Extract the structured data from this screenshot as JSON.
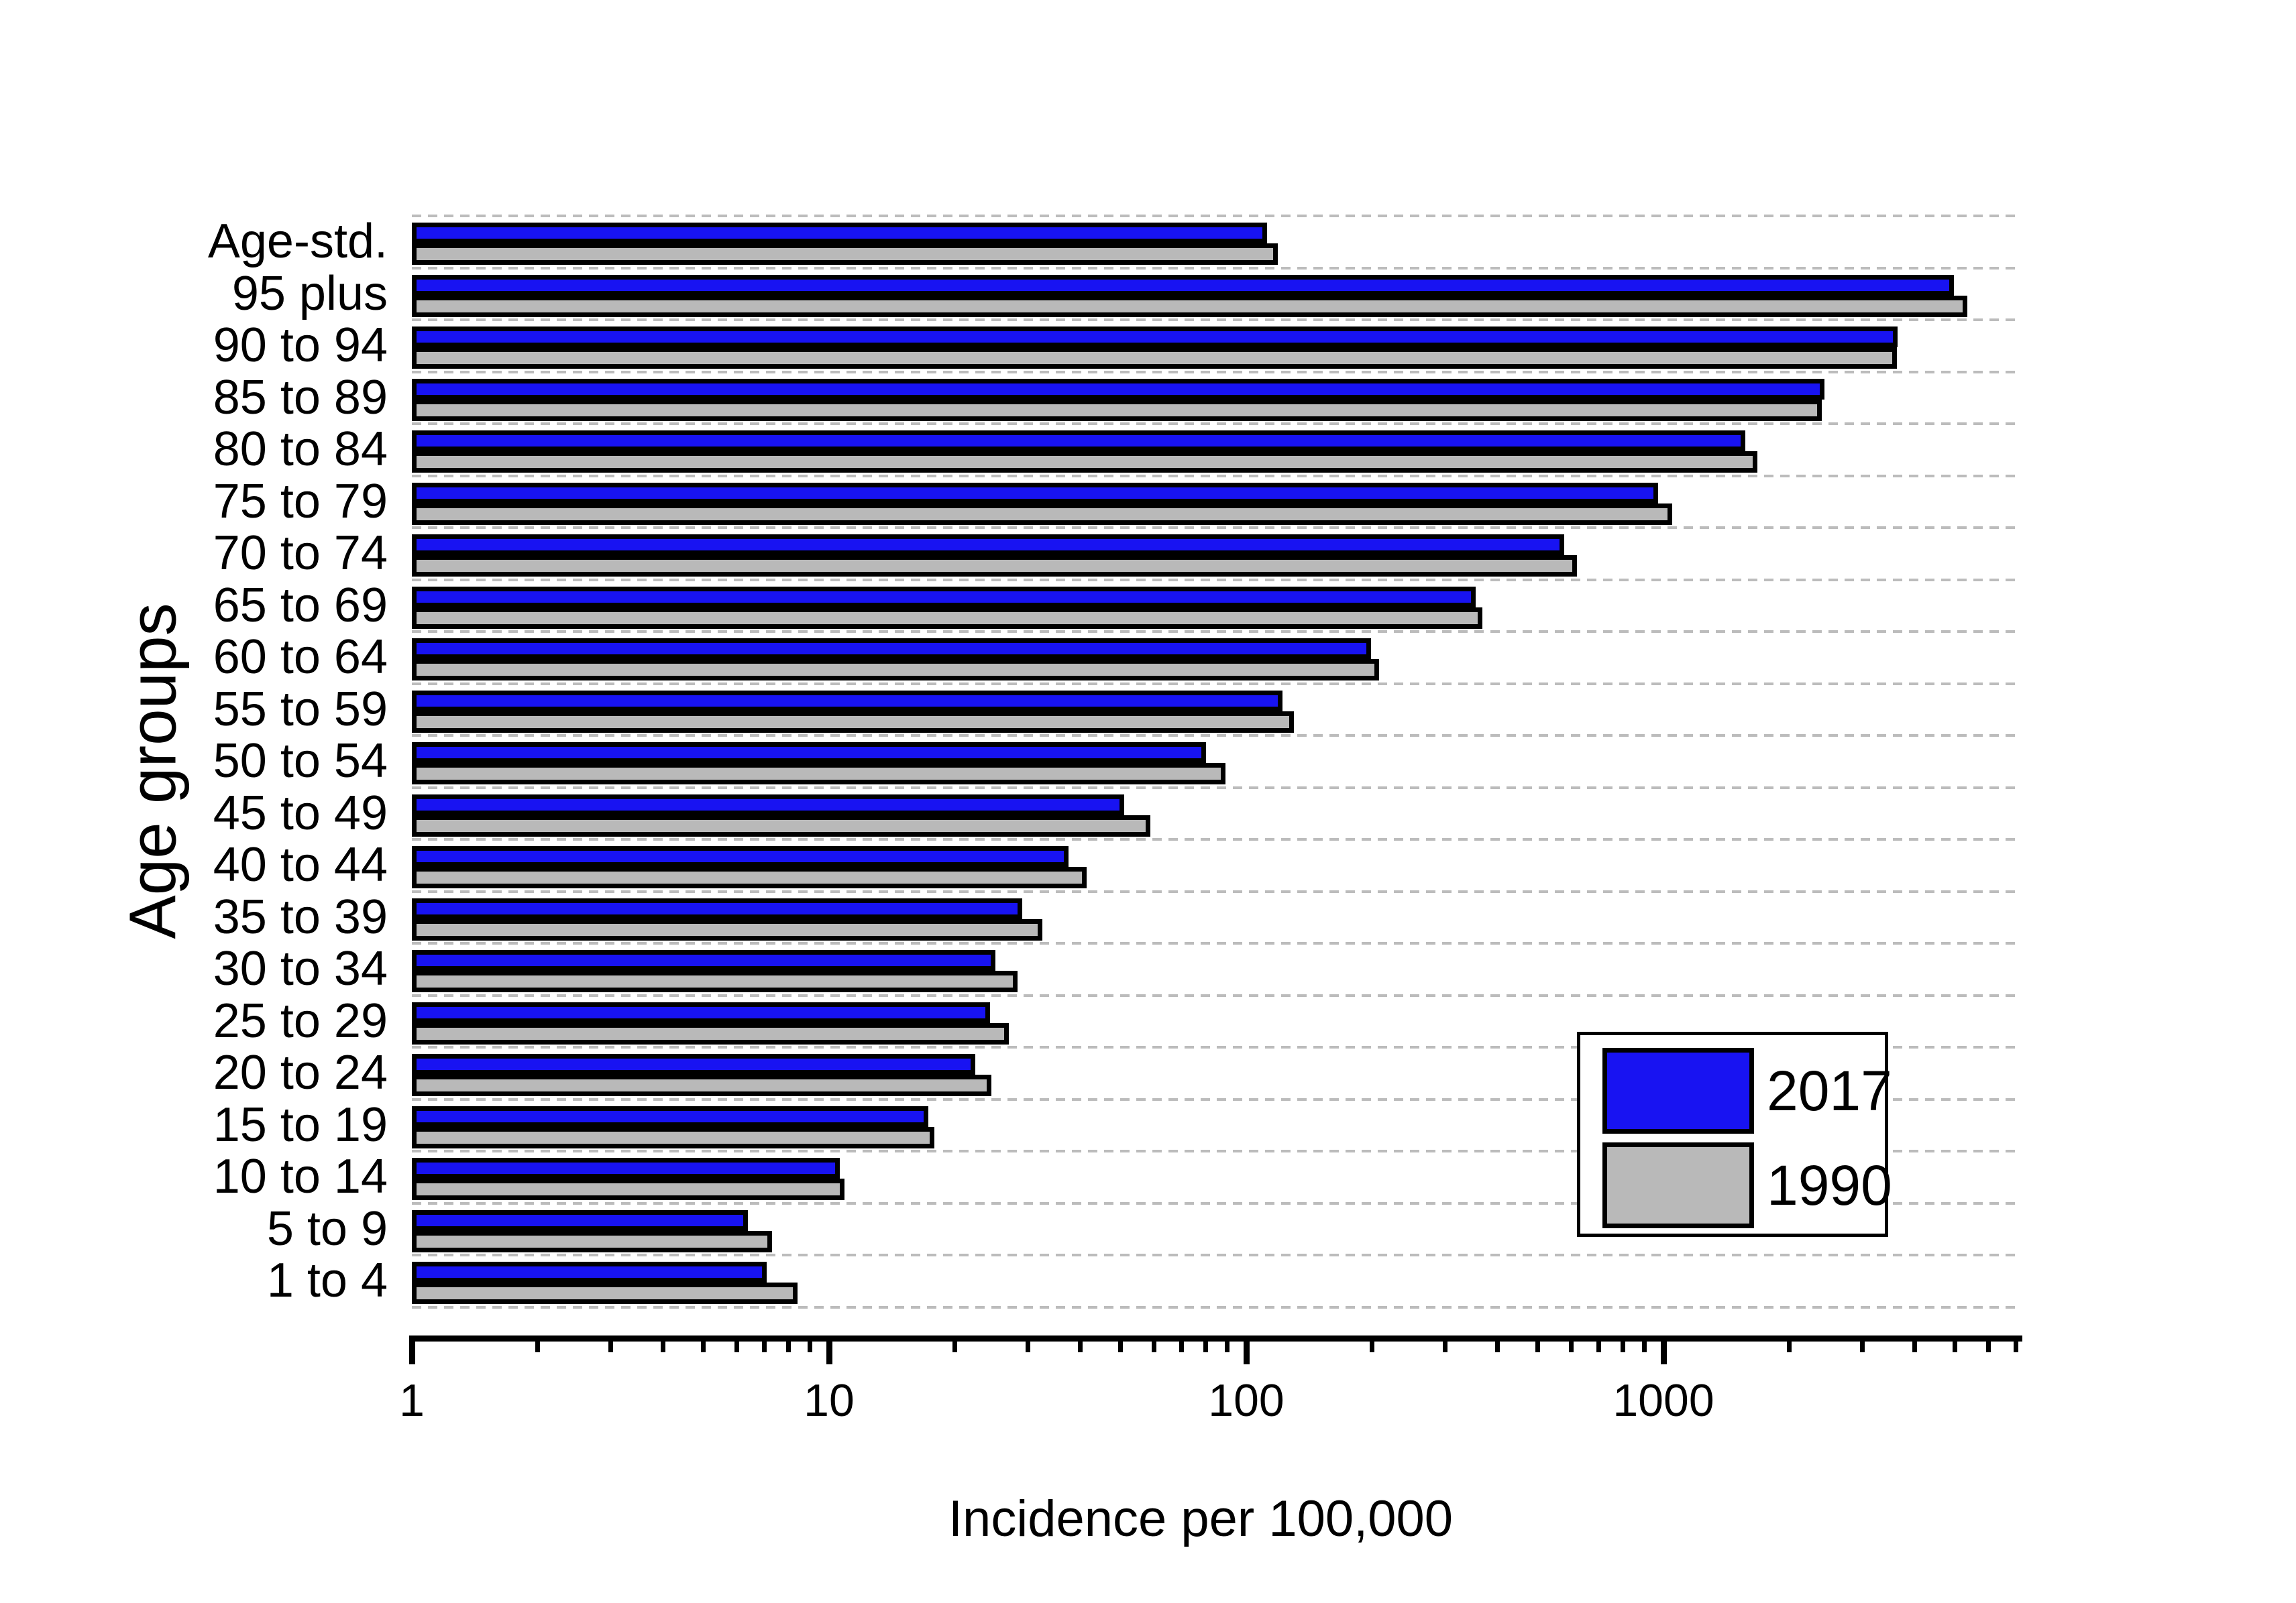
{
  "chart_data": {
    "type": "bar",
    "orientation": "horizontal",
    "x_scale": "log",
    "xlabel": "Incidence per 100,000",
    "ylabel": "Age groups",
    "xlim": [
      1,
      7000
    ],
    "x_major_ticks": [
      1,
      10,
      100,
      1000
    ],
    "x_major_tick_labels": [
      "1",
      "10",
      "100",
      "1000"
    ],
    "x_minor_ticks": [
      2,
      3,
      4,
      5,
      6,
      7,
      8,
      9,
      20,
      30,
      40,
      50,
      60,
      70,
      80,
      90,
      200,
      300,
      400,
      500,
      600,
      700,
      800,
      900,
      2000,
      3000,
      4000,
      5000,
      6000,
      7000
    ],
    "grid": {
      "style": "horizontal-dashed",
      "color": "#bcbcbc"
    },
    "legend": {
      "position": "lower-right",
      "entries": [
        "2017",
        "1990"
      ]
    },
    "categories": [
      "Age-std.",
      "95 plus",
      "90 to 94",
      "85 to 89",
      "80 to 84",
      "75 to 79",
      "70 to 74",
      "65 to 69",
      "60 to 64",
      "55 to 59",
      "50 to 54",
      "45 to 49",
      "40 to 44",
      "35 to 39",
      "30 to 34",
      "25 to 29",
      "20 to 24",
      "15 to 19",
      "10 to 14",
      "5 to 9",
      "1 to 4"
    ],
    "series": [
      {
        "name": "2017",
        "color": "#1813f2",
        "values": [
          112,
          4970,
          3640,
          2430,
          1570,
          970,
          578,
          355,
          199,
          122,
          80,
          51,
          37.5,
          29,
          25,
          24.3,
          22.4,
          17.3,
          10.6,
          6.4,
          7.1
        ]
      },
      {
        "name": "1990",
        "color": "#b9b9b9",
        "values": [
          119,
          5350,
          3630,
          2400,
          1680,
          1050,
          620,
          368,
          208,
          130,
          89,
          59,
          41.5,
          32.5,
          28.3,
          27,
          24.5,
          17.9,
          10.9,
          7.3,
          8.4
        ]
      }
    ]
  },
  "colors": {
    "background": "#ffffff",
    "bar_border": "#000000",
    "axis": "#000000",
    "grid": "#bcbcbc"
  }
}
